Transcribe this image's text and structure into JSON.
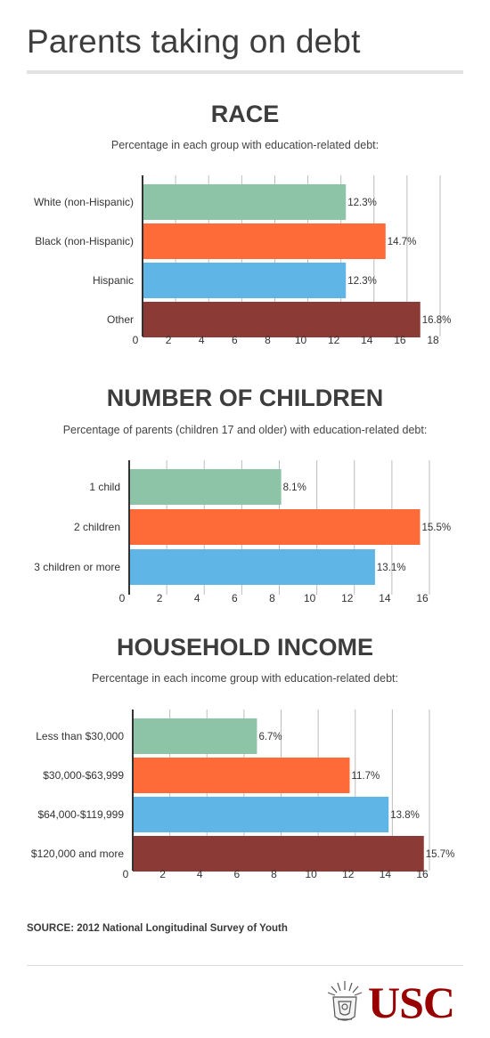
{
  "page_title": "Parents taking on debt",
  "source": "SOURCE: 2012 National Longitudinal Survey of Youth",
  "logo_text": "USC",
  "colors": {
    "green": "#8dc3a7",
    "orange": "#ff6a39",
    "blue": "#5fb5e6",
    "maroon": "#8c3a36",
    "grid": "#bdbdbd"
  },
  "chart_data": [
    {
      "type": "bar",
      "orientation": "horizontal",
      "title": "RACE",
      "subtitle": "Percentage in each group with education-related debt:",
      "categories": [
        "White (non-Hispanic)",
        "Black (non-Hispanic)",
        "Hispanic",
        "Other"
      ],
      "values": [
        12.3,
        14.7,
        12.3,
        16.8
      ],
      "value_labels": [
        "12.3%",
        "14.7%",
        "12.3%",
        "16.8%"
      ],
      "colors": [
        "#8dc3a7",
        "#ff6a39",
        "#5fb5e6",
        "#8c3a36"
      ],
      "ticks": [
        0,
        2,
        4,
        6,
        8,
        10,
        12,
        14,
        16,
        18
      ],
      "xlim": [
        0,
        18
      ],
      "grid": true
    },
    {
      "type": "bar",
      "orientation": "horizontal",
      "title": "NUMBER OF CHILDREN",
      "subtitle": "Percentage of parents (children 17 and older) with education-related debt:",
      "categories": [
        "1 child",
        "2 children",
        "3 children or more"
      ],
      "values": [
        8.1,
        15.5,
        13.1
      ],
      "value_labels": [
        "8.1%",
        "15.5%",
        "13.1%"
      ],
      "colors": [
        "#8dc3a7",
        "#ff6a39",
        "#5fb5e6"
      ],
      "ticks": [
        0,
        2,
        4,
        6,
        8,
        10,
        12,
        14,
        16
      ],
      "xlim": [
        0,
        16
      ],
      "grid": true
    },
    {
      "type": "bar",
      "orientation": "horizontal",
      "title": "HOUSEHOLD INCOME",
      "subtitle": "Percentage in each income group with education-related debt:",
      "categories": [
        "Less than $30,000",
        "$30,000-$63,999",
        "$64,000-$119,999",
        "$120,000 and more"
      ],
      "values": [
        6.7,
        11.7,
        13.8,
        15.7
      ],
      "value_labels": [
        "6.7%",
        "11.7%",
        "13.8%",
        "15.7%"
      ],
      "colors": [
        "#8dc3a7",
        "#ff6a39",
        "#5fb5e6",
        "#8c3a36"
      ],
      "ticks": [
        0,
        2,
        4,
        6,
        8,
        10,
        12,
        14,
        16
      ],
      "xlim": [
        0,
        16
      ],
      "grid": true
    }
  ]
}
